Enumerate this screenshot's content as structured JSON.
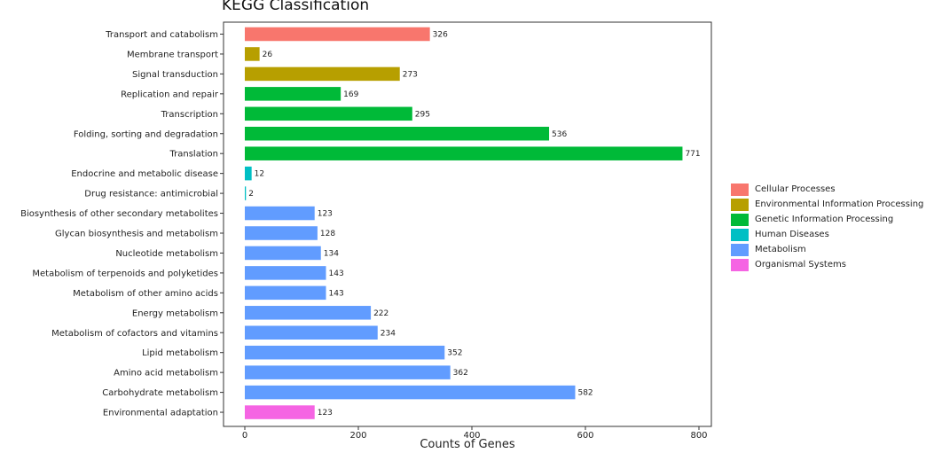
{
  "chart_data": {
    "type": "bar",
    "orientation": "horizontal",
    "title": "KEGG Classification",
    "xlabel": "Counts of Genes",
    "ylabel": "",
    "xlim": [
      0,
      800
    ],
    "xticks": [
      "0",
      "200",
      "400",
      "600",
      "800"
    ],
    "grid": false,
    "legend_position": "right",
    "groups": [
      {
        "name": "Cellular Processes",
        "color": "#F8766D"
      },
      {
        "name": "Environmental Information Processing",
        "color": "#B79F00"
      },
      {
        "name": "Genetic Information Processing",
        "color": "#00BA38"
      },
      {
        "name": "Human Diseases",
        "color": "#00BFC4"
      },
      {
        "name": "Metabolism",
        "color": "#619CFF"
      },
      {
        "name": "Organismal Systems",
        "color": "#F564E3"
      }
    ],
    "bars": [
      {
        "label": "Transport and catabolism",
        "value": 326,
        "group": 0
      },
      {
        "label": "Membrane transport",
        "value": 26,
        "group": 1
      },
      {
        "label": "Signal transduction",
        "value": 273,
        "group": 1
      },
      {
        "label": "Replication and repair",
        "value": 169,
        "group": 2
      },
      {
        "label": "Transcription",
        "value": 295,
        "group": 2
      },
      {
        "label": "Folding, sorting and degradation",
        "value": 536,
        "group": 2
      },
      {
        "label": "Translation",
        "value": 771,
        "group": 2
      },
      {
        "label": "Endocrine and metabolic disease",
        "value": 12,
        "group": 3
      },
      {
        "label": "Drug resistance: antimicrobial",
        "value": 2,
        "group": 3
      },
      {
        "label": "Biosynthesis of other secondary metabolites",
        "value": 123,
        "group": 4
      },
      {
        "label": "Glycan biosynthesis and metabolism",
        "value": 128,
        "group": 4
      },
      {
        "label": "Nucleotide metabolism",
        "value": 134,
        "group": 4
      },
      {
        "label": "Metabolism of terpenoids and polyketides",
        "value": 143,
        "group": 4
      },
      {
        "label": "Metabolism of other amino acids",
        "value": 143,
        "group": 4
      },
      {
        "label": "Energy metabolism",
        "value": 222,
        "group": 4
      },
      {
        "label": "Metabolism of cofactors and vitamins",
        "value": 234,
        "group": 4
      },
      {
        "label": "Lipid metabolism",
        "value": 352,
        "group": 4
      },
      {
        "label": "Amino acid metabolism",
        "value": 362,
        "group": 4
      },
      {
        "label": "Carbohydrate metabolism",
        "value": 582,
        "group": 4
      },
      {
        "label": "Environmental adaptation",
        "value": 123,
        "group": 5
      }
    ]
  }
}
